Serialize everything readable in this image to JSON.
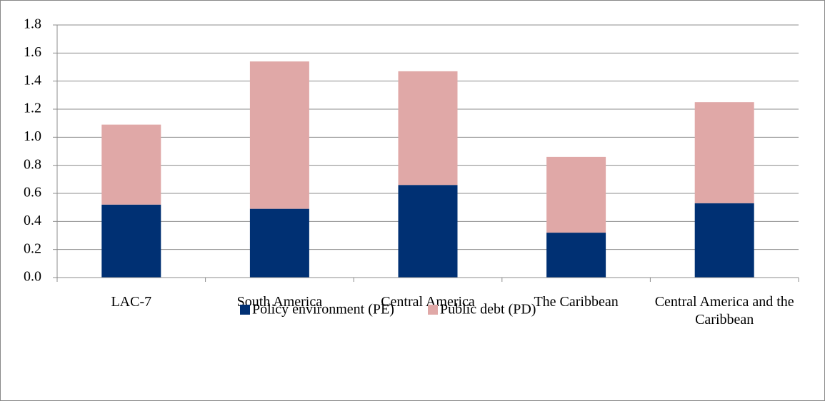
{
  "chart_data": {
    "type": "stacked-bar",
    "categories": [
      "LAC-7",
      "South America",
      "Central America",
      "The Caribbean",
      "Central America and the Caribbean"
    ],
    "series": [
      {
        "name": "Policy environment (PE)",
        "color": "#003073",
        "values": [
          0.52,
          0.49,
          0.66,
          0.32,
          0.53
        ]
      },
      {
        "name": "Public debt (PD)",
        "color": "#e0a8a7",
        "values": [
          0.57,
          1.05,
          0.81,
          0.54,
          0.72
        ]
      }
    ],
    "ylim": [
      0,
      1.8
    ],
    "yticks": [
      {
        "value": 0,
        "label": "0.0"
      },
      0.2,
      0.4,
      0.6,
      0.8,
      {
        "value": 1,
        "label": "1.0"
      },
      1.2,
      1.4,
      1.6,
      1.8
    ],
    "grid": true,
    "legend": "bottom"
  }
}
